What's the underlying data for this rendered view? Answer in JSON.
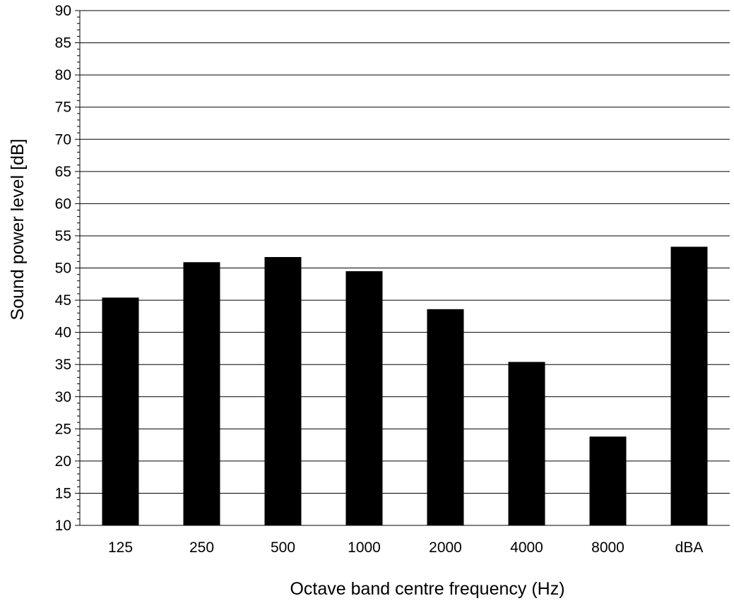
{
  "chart_data": {
    "type": "bar",
    "title": "",
    "xlabel": "Octave band centre frequency (Hz)",
    "ylabel": "Sound power level [dB]",
    "categories": [
      "125",
      "250",
      "500",
      "1000",
      "2000",
      "4000",
      "8000",
      "dBA"
    ],
    "values": [
      45.4,
      50.9,
      51.7,
      49.5,
      43.6,
      35.4,
      23.8,
      53.3
    ],
    "ylim": [
      10,
      90
    ],
    "yticks": [
      "10",
      "15",
      "20",
      "25",
      "30",
      "35",
      "40",
      "45",
      "50",
      "55",
      "60",
      "65",
      "70",
      "75",
      "80",
      "85",
      "90"
    ],
    "grid": true,
    "legend": "none",
    "bar_color": "#000000"
  }
}
